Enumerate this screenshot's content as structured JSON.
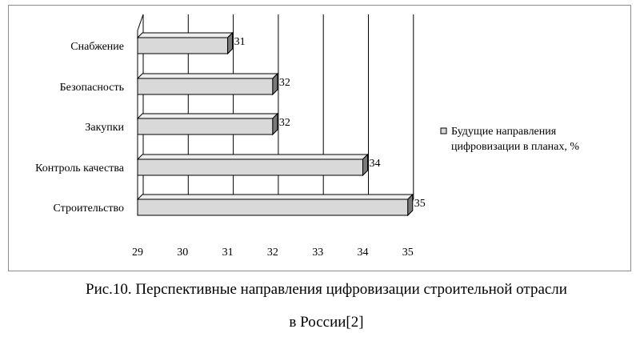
{
  "chart_data": {
    "type": "bar",
    "orientation": "horizontal",
    "style": "3d",
    "categories": [
      "Снабжение",
      "Безопасность",
      "Закупки",
      "Контроль качества",
      "Строительство"
    ],
    "series": [
      {
        "name": "Будущие направления цифровизации в планах, %",
        "values": [
          31,
          32,
          32,
          34,
          35
        ]
      }
    ],
    "data_labels": [
      "31",
      "32",
      "32",
      "34",
      "35"
    ],
    "x_ticks": [
      "29",
      "30",
      "31",
      "32",
      "33",
      "34",
      "35"
    ],
    "xlim": [
      29,
      35
    ],
    "grid": true,
    "legend_position": "right",
    "legend_lines": [
      "Будущие направления",
      "цифровизации в планах, %"
    ],
    "bar_color": "#d9d9d9"
  },
  "caption": {
    "line1": "Рис.10. Перспективные направления цифровизации строительной отрасли",
    "line2": "в России[2]"
  }
}
